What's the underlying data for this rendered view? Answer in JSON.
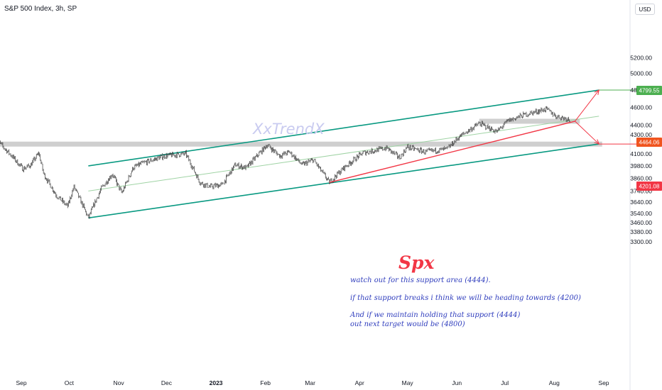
{
  "header": {
    "title": "S&P 500 Index, 3h, SP",
    "currency": "USD"
  },
  "watermark": "XxTrendX",
  "annotation": {
    "title": "Spx",
    "lines": [
      "watch out for this support area (4444).",
      "if that support breaks i think we will be heading towards (4200)",
      "And if we maintain holding that support (4444)",
      "out next target would be (4800)"
    ]
  },
  "price_labels": {
    "upper_target": "4799.55",
    "current": "4464.06",
    "lower_target": "4201.08"
  },
  "colors": {
    "channel": "#089981",
    "midline": "#9fd3a4",
    "trendline": "#f23645",
    "candles": "#333333",
    "zones": "#cfcfcf",
    "upper_label": "#4caf50",
    "current_label": "#f0541e",
    "lower_label": "#f23645"
  },
  "chart_data": {
    "type": "candlestick",
    "y_axis_ticks": [
      "5200.00",
      "5000.00",
      "4800.00",
      "4600.00",
      "4400.00",
      "4300.00",
      "4100.00",
      "3980.00",
      "3860.00",
      "3740.00",
      "3640.00",
      "3540.00",
      "3460.00",
      "3380.00",
      "3300.00"
    ],
    "x_axis_ticks": [
      "Sep",
      "Oct",
      "Nov",
      "Dec",
      "2023",
      "Feb",
      "Mar",
      "Apr",
      "May",
      "Jun",
      "Jul",
      "Aug",
      "Sep"
    ],
    "scale": "log",
    "close_path": [
      [
        "2022-08-16",
        4280
      ],
      [
        "2022-08-20",
        4180
      ],
      [
        "2022-08-26",
        4080
      ],
      [
        "2022-09-02",
        3950
      ],
      [
        "2022-09-07",
        3990
      ],
      [
        "2022-09-12",
        4110
      ],
      [
        "2022-09-15",
        3900
      ],
      [
        "2022-09-23",
        3700
      ],
      [
        "2022-09-30",
        3600
      ],
      [
        "2022-10-04",
        3780
      ],
      [
        "2022-10-13",
        3500
      ],
      [
        "2022-10-21",
        3760
      ],
      [
        "2022-10-28",
        3900
      ],
      [
        "2022-11-03",
        3720
      ],
      [
        "2022-11-10",
        3960
      ],
      [
        "2022-11-15",
        4000
      ],
      [
        "2022-11-30",
        4080
      ],
      [
        "2022-12-13",
        4100
      ],
      [
        "2022-12-22",
        3820
      ],
      [
        "2022-12-28",
        3780
      ],
      [
        "2023-01-05",
        3800
      ],
      [
        "2023-01-13",
        3990
      ],
      [
        "2023-01-20",
        3960
      ],
      [
        "2023-02-02",
        4190
      ],
      [
        "2023-02-10",
        4080
      ],
      [
        "2023-02-16",
        4120
      ],
      [
        "2023-02-24",
        3990
      ],
      [
        "2023-03-03",
        4040
      ],
      [
        "2023-03-13",
        3820
      ],
      [
        "2023-03-22",
        3960
      ],
      [
        "2023-04-03",
        4110
      ],
      [
        "2023-04-18",
        4160
      ],
      [
        "2023-04-26",
        4060
      ],
      [
        "2023-05-01",
        4170
      ],
      [
        "2023-05-12",
        4120
      ],
      [
        "2023-05-26",
        4150
      ],
      [
        "2023-06-02",
        4270
      ],
      [
        "2023-06-15",
        4420
      ],
      [
        "2023-06-26",
        4330
      ],
      [
        "2023-07-03",
        4450
      ],
      [
        "2023-07-14",
        4520
      ],
      [
        "2023-07-27",
        4580
      ],
      [
        "2023-08-02",
        4500
      ],
      [
        "2023-08-11",
        4464
      ]
    ],
    "channel_upper": [
      [
        "2022-10-13",
        3980
      ],
      [
        "2023-08-29",
        4799.55
      ]
    ],
    "channel_lower": [
      [
        "2022-10-13",
        3500
      ],
      [
        "2023-08-29",
        4201.08
      ]
    ],
    "channel_mid": [
      [
        "2022-10-13",
        3740
      ],
      [
        "2023-08-29",
        4500
      ]
    ],
    "trendline": [
      [
        "2023-03-13",
        3820
      ],
      [
        "2023-08-14",
        4444
      ]
    ],
    "projections": [
      {
        "from": [
          "2023-08-14",
          4444
        ],
        "to": [
          "2023-08-29",
          4799.55
        ]
      },
      {
        "from": [
          "2023-08-14",
          4444
        ],
        "to": [
          "2023-08-29",
          4201.08
        ]
      }
    ],
    "zones": [
      {
        "level": 4200,
        "from": "2022-08-16",
        "to": "2023-08-31"
      },
      {
        "level": 4444,
        "from": "2023-06-15",
        "to": "2023-08-17"
      }
    ]
  }
}
